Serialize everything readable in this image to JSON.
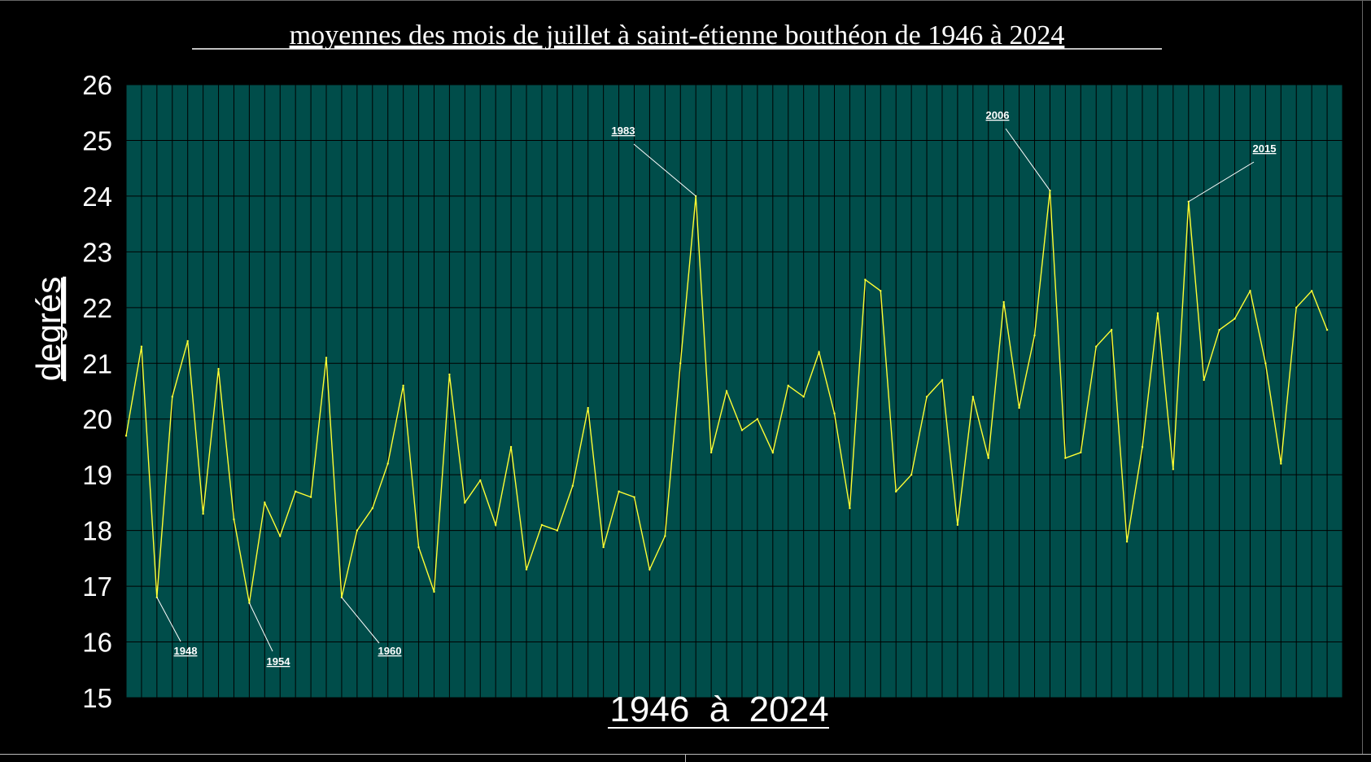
{
  "chart_data": {
    "type": "line",
    "title": "moyennes des mois de juillet à saint-étienne bouthéon de 1946 à 2024",
    "xlabel": "1946  à  2024",
    "ylabel": "degrés",
    "ylim": [
      15,
      26
    ],
    "yticks": [
      "15",
      "16",
      "17",
      "18",
      "19",
      "20",
      "21",
      "22",
      "23",
      "24",
      "25",
      "26"
    ],
    "grid": true,
    "x_start": 1946,
    "x_end": 2024,
    "series": [
      {
        "color": "#ffff33",
        "x": [
          1946,
          1947,
          1948,
          1949,
          1950,
          1951,
          1952,
          1953,
          1954,
          1955,
          1956,
          1957,
          1958,
          1959,
          1960,
          1961,
          1962,
          1963,
          1964,
          1965,
          1966,
          1967,
          1968,
          1969,
          1970,
          1971,
          1972,
          1973,
          1974,
          1975,
          1976,
          1977,
          1978,
          1979,
          1980,
          1981,
          1982,
          1983,
          1984,
          1985,
          1986,
          1987,
          1988,
          1989,
          1990,
          1991,
          1992,
          1993,
          1994,
          1995,
          1996,
          1997,
          1998,
          1999,
          2000,
          2001,
          2002,
          2003,
          2004,
          2005,
          2006,
          2007,
          2008,
          2009,
          2010,
          2011,
          2012,
          2013,
          2014,
          2015,
          2016,
          2017,
          2018,
          2019,
          2020,
          2021,
          2022,
          2023,
          2024
        ],
        "values": [
          19.7,
          21.3,
          16.8,
          20.4,
          21.4,
          18.3,
          20.9,
          18.2,
          16.7,
          18.5,
          17.9,
          18.7,
          18.6,
          21.1,
          16.8,
          18.0,
          18.4,
          19.2,
          20.6,
          17.7,
          16.9,
          20.8,
          18.5,
          18.9,
          18.1,
          19.5,
          17.3,
          18.1,
          18.0,
          18.8,
          20.2,
          17.7,
          18.7,
          18.6,
          17.3,
          17.9,
          21.0,
          24.0,
          19.4,
          20.5,
          19.8,
          20.0,
          19.4,
          20.6,
          20.4,
          21.2,
          20.1,
          18.4,
          22.5,
          22.3,
          18.7,
          19.0,
          20.4,
          20.7,
          18.1,
          20.4,
          19.3,
          22.1,
          20.2,
          21.5,
          24.1,
          19.3,
          19.4,
          21.3,
          21.6,
          17.8,
          19.5,
          21.9,
          19.1,
          23.9,
          20.7,
          21.6,
          21.8,
          22.3,
          21.0,
          19.2,
          22.0,
          22.3,
          21.6
        ]
      }
    ],
    "annotations": [
      {
        "label": "1948",
        "year": 1948
      },
      {
        "label": "1954",
        "year": 1954
      },
      {
        "label": "1960",
        "year": 1960
      },
      {
        "label": "1983",
        "year": 1983
      },
      {
        "label": "2006",
        "year": 2006
      },
      {
        "label": "2015",
        "year": 2015
      }
    ],
    "colors": {
      "background": "#000000",
      "plot_area": "#004d4a",
      "grid": "#000000",
      "line": "#ffff33",
      "text": "#ffffff"
    }
  }
}
